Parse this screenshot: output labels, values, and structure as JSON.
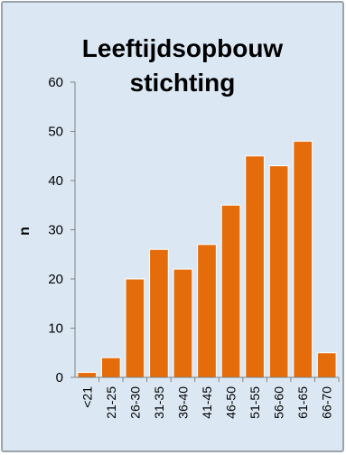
{
  "chart_data": {
    "type": "bar",
    "title_line1": "Leeftijdsopbouw",
    "title_line2": "stichting",
    "xlabel": "",
    "ylabel": "n",
    "ylim": [
      0,
      60
    ],
    "yticks": [
      0,
      10,
      20,
      30,
      40,
      50,
      60
    ],
    "grid": false,
    "legend": "none",
    "categories": [
      "<21",
      "21-25",
      "26-30",
      "31-35",
      "36-40",
      "41-45",
      "46-50",
      "51-55",
      "56-60",
      "61-65",
      "66-70"
    ],
    "values": [
      1,
      4,
      20,
      26,
      22,
      27,
      35,
      45,
      43,
      48,
      5
    ]
  },
  "colors": {
    "background": "#dbe8f4",
    "border": "#9aa3ab",
    "bar_fill": "#e46c0a",
    "bar_stroke": "#ffffff",
    "axis": "#7f7f7f"
  }
}
